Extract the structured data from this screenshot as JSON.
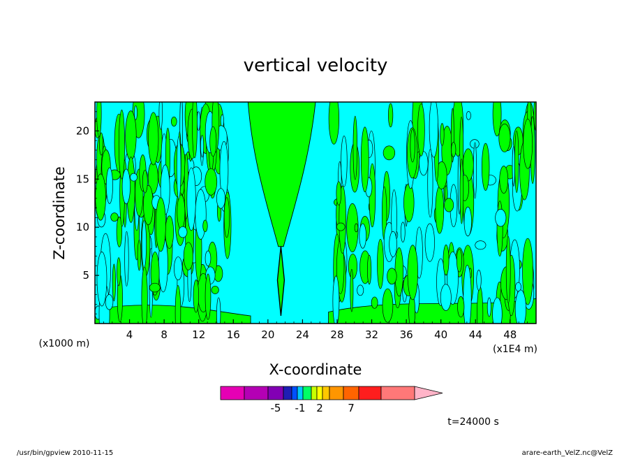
{
  "chart_data": {
    "type": "heatmap",
    "title": "vertical velocity",
    "xlabel": "X-coordinate",
    "ylabel": "Z-coordinate",
    "x_unit_left": "(x1000 m)",
    "x_unit_right": "(x1E4 m)",
    "xlim": [
      0,
      51
    ],
    "ylim": [
      0,
      23
    ],
    "x_ticks": [
      4,
      8,
      12,
      16,
      20,
      24,
      28,
      32,
      36,
      40,
      44,
      48
    ],
    "y_ticks": [
      5,
      10,
      15,
      20
    ],
    "time_label": "t=24000 s",
    "colorbar": {
      "colors": [
        "#e600b4",
        "#b400b4",
        "#8200b4",
        "#1e1eb4",
        "#0050ff",
        "#00c8ff",
        "#00ff64",
        "#c8ff00",
        "#ffff00",
        "#ffc800",
        "#ff9600",
        "#ff6400",
        "#ff1e1e",
        "#ff7878",
        "#ffb4c8"
      ],
      "ticks": [
        {
          "label": "-5",
          "value": -5
        },
        {
          "label": "-1",
          "value": -1
        },
        {
          "label": "2",
          "value": 2
        },
        {
          "label": "7",
          "value": 7
        }
      ]
    },
    "regions": {
      "background_color": "#00ffff",
      "positive_color": "#00ff00",
      "plume_center_x": 21.5,
      "plume_half_width_top": 3.5,
      "plume_base_z": 8
    }
  },
  "footer": {
    "left": "/usr/bin/gpview    2010-11-15",
    "right": "arare-earth_VelZ.nc@VelZ"
  }
}
